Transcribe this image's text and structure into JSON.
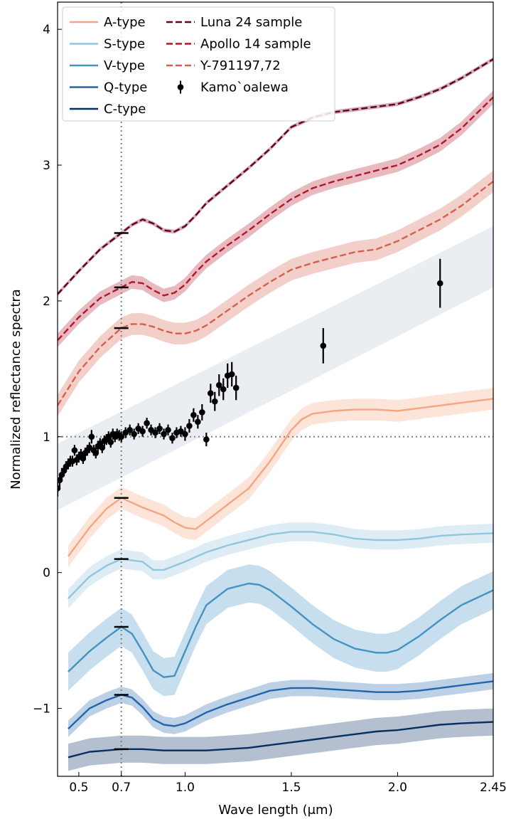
{
  "chart_data": {
    "type": "line",
    "xlabel": "Wave length (μm)",
    "ylabel": "Normalized reflectance spectra",
    "xlim": [
      0.4,
      2.45
    ],
    "ylim": [
      -1.5,
      4.2
    ],
    "xticks": [
      0.5,
      0.7,
      1.0,
      1.5,
      2.0,
      2.45
    ],
    "xtick_labels": [
      "0.5",
      "0.7",
      "1.0",
      "1.5",
      "2.0",
      "2.45"
    ],
    "yticks": [
      -1,
      0,
      1,
      2,
      3,
      4
    ],
    "ytick_labels": [
      "−1",
      "0",
      "1",
      "2",
      "3",
      "4"
    ],
    "reference_lines": {
      "vertical_x": 0.7,
      "horizontal_y": 1.0,
      "style": "dotted gray"
    },
    "legend_position": "upper-left",
    "series": [
      {
        "name": "A-type",
        "color": "#f4a582",
        "style": "solid",
        "band": 0.08,
        "x": [
          0.45,
          0.55,
          0.63,
          0.7,
          0.8,
          0.9,
          0.95,
          1.0,
          1.05,
          1.1,
          1.2,
          1.3,
          1.4,
          1.5,
          1.55,
          1.6,
          1.7,
          1.8,
          1.9,
          2.0,
          2.1,
          2.2,
          2.3,
          2.45
        ],
        "y": [
          0.12,
          0.33,
          0.47,
          0.55,
          0.48,
          0.42,
          0.37,
          0.33,
          0.32,
          0.38,
          0.5,
          0.62,
          0.82,
          1.05,
          1.13,
          1.17,
          1.19,
          1.2,
          1.2,
          1.19,
          1.21,
          1.23,
          1.25,
          1.28
        ]
      },
      {
        "name": "S-type",
        "color": "#92c5de",
        "style": "solid",
        "band": 0.07,
        "x": [
          0.45,
          0.55,
          0.63,
          0.7,
          0.8,
          0.85,
          0.9,
          0.95,
          1.0,
          1.1,
          1.2,
          1.3,
          1.4,
          1.5,
          1.6,
          1.7,
          1.8,
          1.9,
          2.0,
          2.1,
          2.2,
          2.3,
          2.45
        ],
        "y": [
          -0.19,
          -0.03,
          0.05,
          0.1,
          0.08,
          0.02,
          0.02,
          0.05,
          0.08,
          0.15,
          0.2,
          0.24,
          0.28,
          0.3,
          0.3,
          0.28,
          0.25,
          0.24,
          0.24,
          0.25,
          0.27,
          0.28,
          0.29
        ]
      },
      {
        "name": "V-type",
        "color": "#4393c3",
        "style": "solid",
        "band": 0.14,
        "x": [
          0.45,
          0.55,
          0.63,
          0.7,
          0.75,
          0.8,
          0.85,
          0.9,
          0.95,
          1.0,
          1.05,
          1.1,
          1.2,
          1.3,
          1.35,
          1.4,
          1.5,
          1.6,
          1.7,
          1.8,
          1.9,
          1.95,
          2.0,
          2.1,
          2.2,
          2.3,
          2.45
        ],
        "y": [
          -0.73,
          -0.58,
          -0.48,
          -0.4,
          -0.45,
          -0.58,
          -0.72,
          -0.77,
          -0.76,
          -0.58,
          -0.4,
          -0.24,
          -0.12,
          -0.08,
          -0.09,
          -0.13,
          -0.25,
          -0.38,
          -0.49,
          -0.56,
          -0.59,
          -0.59,
          -0.57,
          -0.47,
          -0.35,
          -0.24,
          -0.13
        ]
      },
      {
        "name": "Q-type",
        "color": "#2166ac",
        "style": "solid",
        "band": 0.06,
        "x": [
          0.45,
          0.55,
          0.63,
          0.7,
          0.75,
          0.8,
          0.85,
          0.9,
          0.95,
          1.0,
          1.1,
          1.2,
          1.3,
          1.4,
          1.5,
          1.6,
          1.7,
          1.8,
          1.9,
          2.0,
          2.1,
          2.2,
          2.3,
          2.45
        ],
        "y": [
          -1.15,
          -1.0,
          -0.94,
          -0.9,
          -0.92,
          -0.99,
          -1.08,
          -1.12,
          -1.13,
          -1.11,
          -1.03,
          -0.97,
          -0.92,
          -0.87,
          -0.85,
          -0.85,
          -0.86,
          -0.87,
          -0.88,
          -0.88,
          -0.87,
          -0.85,
          -0.83,
          -0.8
        ]
      },
      {
        "name": "C-type",
        "color": "#053061",
        "style": "solid",
        "band": 0.1,
        "x": [
          0.45,
          0.55,
          0.63,
          0.7,
          0.8,
          0.9,
          1.0,
          1.1,
          1.2,
          1.3,
          1.4,
          1.5,
          1.6,
          1.7,
          1.8,
          1.9,
          2.0,
          2.1,
          2.2,
          2.3,
          2.45
        ],
        "y": [
          -1.36,
          -1.32,
          -1.31,
          -1.3,
          -1.3,
          -1.31,
          -1.31,
          -1.31,
          -1.3,
          -1.29,
          -1.27,
          -1.25,
          -1.23,
          -1.21,
          -1.19,
          -1.17,
          -1.16,
          -1.14,
          -1.12,
          -1.11,
          -1.1
        ]
      },
      {
        "name": "Luna 24 sample",
        "color": "#67001f",
        "style": "dashed",
        "band": 0.015,
        "x": [
          0.4,
          0.5,
          0.6,
          0.7,
          0.75,
          0.8,
          0.85,
          0.9,
          0.95,
          1.0,
          1.05,
          1.1,
          1.2,
          1.3,
          1.4,
          1.5,
          1.6,
          1.7,
          1.8,
          1.9,
          2.0,
          2.1,
          2.2,
          2.3,
          2.45
        ],
        "y": [
          2.05,
          2.22,
          2.38,
          2.5,
          2.56,
          2.6,
          2.57,
          2.52,
          2.51,
          2.55,
          2.63,
          2.72,
          2.85,
          2.98,
          3.12,
          3.28,
          3.35,
          3.39,
          3.41,
          3.43,
          3.45,
          3.5,
          3.56,
          3.64,
          3.78
        ]
      },
      {
        "name": "Apollo 14 sample",
        "color": "#b2182b",
        "style": "dashed",
        "band": 0.05,
        "x": [
          0.4,
          0.5,
          0.6,
          0.7,
          0.75,
          0.8,
          0.85,
          0.9,
          0.95,
          1.0,
          1.05,
          1.1,
          1.2,
          1.3,
          1.4,
          1.5,
          1.6,
          1.7,
          1.8,
          1.9,
          2.0,
          2.1,
          2.2,
          2.3,
          2.45
        ],
        "y": [
          1.71,
          1.88,
          2.02,
          2.1,
          2.14,
          2.13,
          2.08,
          2.04,
          2.06,
          2.12,
          2.21,
          2.29,
          2.41,
          2.52,
          2.64,
          2.75,
          2.83,
          2.88,
          2.92,
          2.96,
          3.0,
          3.07,
          3.15,
          3.27,
          3.5
        ]
      },
      {
        "name": "Y-791197,72",
        "color": "#d6604d",
        "style": "dashed",
        "band": 0.08,
        "x": [
          0.4,
          0.5,
          0.6,
          0.7,
          0.75,
          0.8,
          0.85,
          0.9,
          0.95,
          1.0,
          1.05,
          1.1,
          1.2,
          1.3,
          1.4,
          1.5,
          1.6,
          1.7,
          1.8,
          1.9,
          2.0,
          2.1,
          2.2,
          2.3,
          2.45
        ],
        "y": [
          1.23,
          1.48,
          1.66,
          1.8,
          1.83,
          1.83,
          1.81,
          1.78,
          1.76,
          1.76,
          1.78,
          1.82,
          1.93,
          2.04,
          2.14,
          2.23,
          2.28,
          2.32,
          2.36,
          2.38,
          2.44,
          2.52,
          2.6,
          2.7,
          2.88
        ]
      }
    ],
    "trend_band": {
      "color": "#d9dfe6",
      "x": [
        0.4,
        2.45
      ],
      "lower": [
        0.46,
        2.1
      ],
      "upper": [
        0.95,
        2.55
      ]
    },
    "scatter": {
      "name": "Kamo`oalewa",
      "color": "#000000",
      "x": [
        0.4,
        0.41,
        0.42,
        0.43,
        0.44,
        0.45,
        0.46,
        0.47,
        0.48,
        0.49,
        0.5,
        0.51,
        0.52,
        0.53,
        0.54,
        0.55,
        0.56,
        0.57,
        0.58,
        0.59,
        0.6,
        0.61,
        0.62,
        0.63,
        0.64,
        0.65,
        0.66,
        0.67,
        0.68,
        0.69,
        0.7,
        0.72,
        0.74,
        0.76,
        0.78,
        0.8,
        0.82,
        0.84,
        0.86,
        0.88,
        0.9,
        0.92,
        0.94,
        0.96,
        0.98,
        1.0,
        1.02,
        1.04,
        1.06,
        1.08,
        1.1,
        1.12,
        1.14,
        1.16,
        1.18,
        1.2,
        1.22,
        1.24,
        1.65,
        2.2
      ],
      "y": [
        0.62,
        0.68,
        0.72,
        0.75,
        0.78,
        0.8,
        0.82,
        0.82,
        0.9,
        0.83,
        0.85,
        0.87,
        0.84,
        0.88,
        0.9,
        0.92,
        1.0,
        0.9,
        0.88,
        0.93,
        0.95,
        0.92,
        0.97,
        0.98,
        1.0,
        0.96,
        1.02,
        1.0,
        1.02,
        1.01,
        1.0,
        1.03,
        1.05,
        1.02,
        1.06,
        1.04,
        1.1,
        1.05,
        1.03,
        1.06,
        1.02,
        1.05,
        0.99,
        1.03,
        1.04,
        1.02,
        1.08,
        1.16,
        1.11,
        1.18,
        0.98,
        1.32,
        1.26,
        1.38,
        1.35,
        1.45,
        1.46,
        1.36,
        1.67,
        2.13
      ],
      "yerr": [
        0.06,
        0.05,
        0.05,
        0.04,
        0.04,
        0.04,
        0.04,
        0.04,
        0.04,
        0.04,
        0.04,
        0.04,
        0.04,
        0.04,
        0.04,
        0.04,
        0.05,
        0.04,
        0.04,
        0.04,
        0.04,
        0.04,
        0.04,
        0.04,
        0.04,
        0.04,
        0.04,
        0.04,
        0.04,
        0.04,
        0.04,
        0.04,
        0.04,
        0.04,
        0.04,
        0.04,
        0.04,
        0.04,
        0.04,
        0.04,
        0.04,
        0.04,
        0.04,
        0.04,
        0.04,
        0.05,
        0.05,
        0.05,
        0.05,
        0.06,
        0.05,
        0.07,
        0.07,
        0.08,
        0.08,
        0.09,
        0.09,
        0.09,
        0.13,
        0.18
      ]
    },
    "markers_at_0_7": [
      2.5,
      2.1,
      1.8,
      0.55,
      0.1,
      -0.4,
      -0.9,
      -1.3
    ]
  }
}
